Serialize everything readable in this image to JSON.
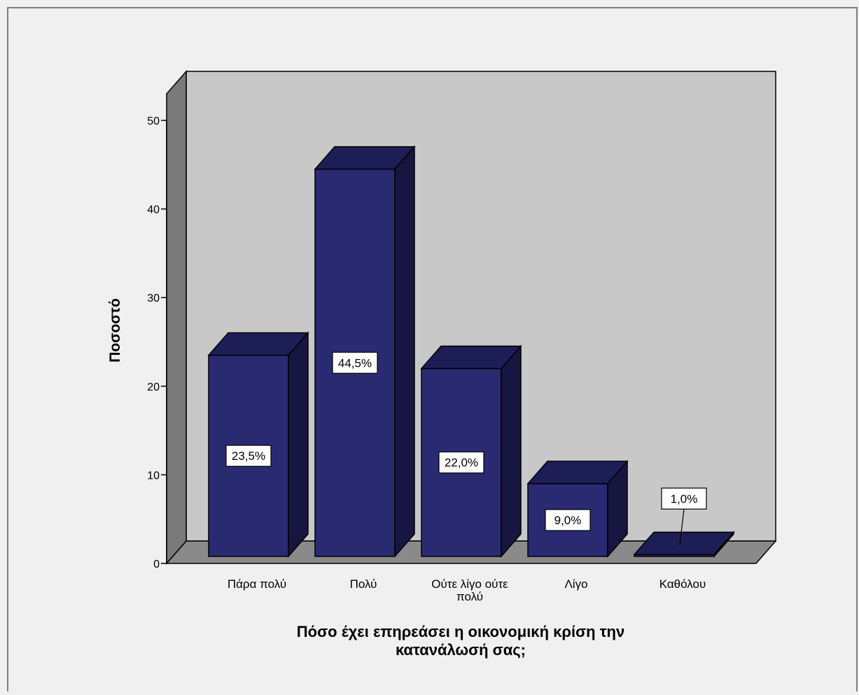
{
  "chart_data": {
    "type": "bar",
    "style": "3d",
    "categories": [
      "Πάρα πολύ",
      "Πολύ",
      "Ούτε λίγο ούτε πολύ",
      "Λίγο",
      "Καθόλου"
    ],
    "category_label_lines": [
      [
        "Πάρα πολύ"
      ],
      [
        "Πολύ"
      ],
      [
        "Ούτε λίγο ούτε",
        "πολύ"
      ],
      [
        "Λίγο"
      ],
      [
        "Καθόλου"
      ]
    ],
    "values": [
      23.5,
      44.5,
      22.0,
      9.0,
      1.0
    ],
    "data_labels": [
      "23,5%",
      "44,5%",
      "22,0%",
      "9,0%",
      "1,0%"
    ],
    "ylabel": "Ποσοστό",
    "xlabel_lines": [
      "Πόσο έχει επηρεάσει η οικονομική κρίση την",
      "κατανάλωσή σας;"
    ],
    "ylim": [
      0,
      50
    ],
    "yticks": [
      0,
      10,
      20,
      30,
      40,
      50
    ],
    "grid": false,
    "legend": "none",
    "colors": {
      "page_bg": "#f0f0f0",
      "wall": "#c8c8c8",
      "side_wall": "#7a7a7a",
      "floor": "#8a8a8a",
      "bar_front": "#2a2a73",
      "bar_top": "#1e1e57",
      "bar_side": "#161640",
      "label_bg": "#ffffff",
      "text": "#000000"
    }
  }
}
